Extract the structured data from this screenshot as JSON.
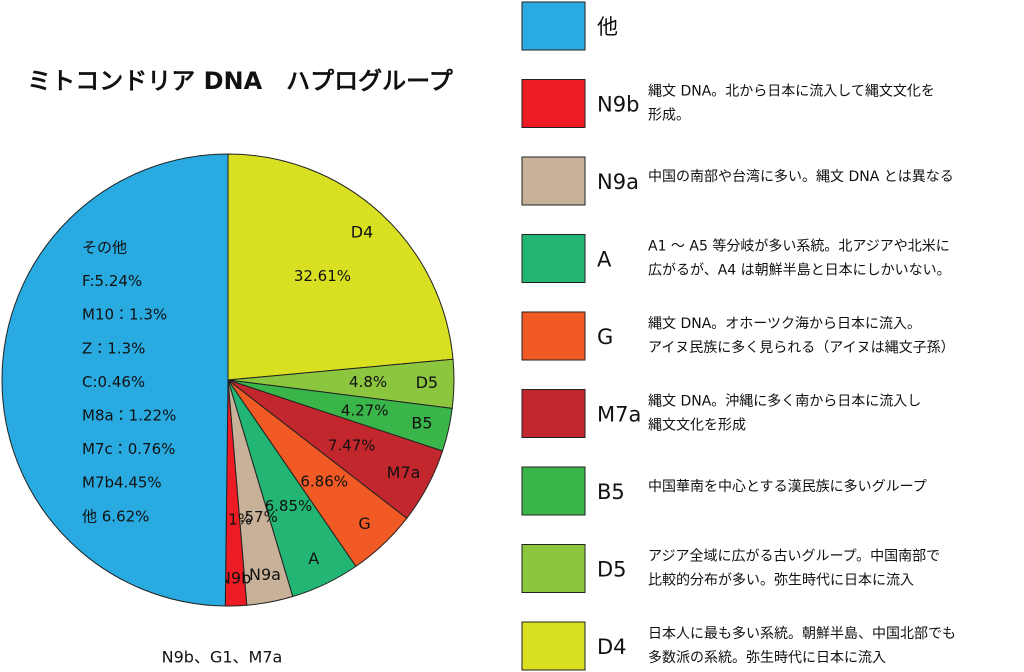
{
  "chart_data": {
    "type": "pie",
    "title": "ミトコンドリア DNA　ハプログループ",
    "categories": [
      "D4",
      "D5",
      "B5",
      "M7a",
      "G",
      "A",
      "N9a",
      "N9b",
      "他"
    ],
    "values": [
      32.61,
      4.8,
      4.27,
      7.47,
      6.86,
      6.85,
      4.57,
      2.1,
      69
    ],
    "value_labels": [
      "32.61%",
      "4.8%",
      "4.27%",
      "7.47%",
      "6.86%",
      "6.85%",
      "4.57%",
      "2.1%",
      null
    ],
    "colors": [
      "#d9e021",
      "#8cc63f",
      "#39b54a",
      "#c1272d",
      "#f15a24",
      "#22b573",
      "#c7b299",
      "#ed1c24",
      "#29abe2"
    ],
    "descriptions": [
      [
        "日本人に最も多い系統。朝鮮半島、中国北部でも",
        "多数派の系統。弥生時代に日本に流入"
      ],
      [
        "アジア全域に広がる古いグループ。中国南部で",
        "比較的分布が多い。弥生時代に日本に流入"
      ],
      [
        "中国華南を中心とする漢民族に多いグループ"
      ],
      [
        "縄文 DNA。沖縄に多く南から日本に流入し",
        "縄文文化を形成"
      ],
      [
        "縄文 DNA。オホーツク海から日本に流入。",
        "アイヌ民族に多く見られる（アイヌは縄文子孫）"
      ],
      [
        "A1 ～ A5 等分岐が多い系統。北アジアや北米に",
        "広がるが、A4 は朝鮮半島と日本にしかいない。"
      ],
      [
        "中国の南部や台湾に多い。縄文 DNA とは異なる"
      ],
      [
        "縄文 DNA。北から日本に流入して縄文文化を",
        "形成。"
      ],
      null
    ],
    "annotations": [
      "その他",
      "F:5.24%",
      "M10：1.3%",
      "Z：1.3%",
      "C:0.46%",
      "M8a：1.22%",
      "M7c：0.76%",
      "M7b4.45%",
      "他 6.62%"
    ],
    "footnote": "N9b、G1、M7a"
  }
}
